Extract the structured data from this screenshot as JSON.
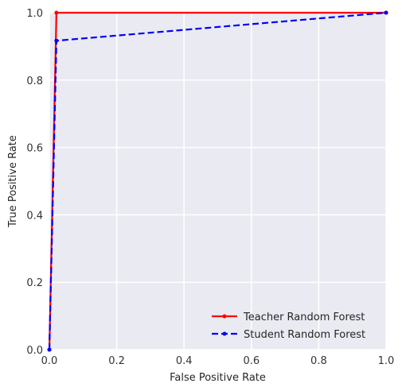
{
  "chart_data": {
    "type": "line",
    "title": "",
    "xlabel": "False Positive Rate",
    "ylabel": "True Positive Rate",
    "xlim": [
      0.0,
      1.0
    ],
    "ylim": [
      0.0,
      1.0
    ],
    "xticks": [
      "0.0",
      "0.2",
      "0.4",
      "0.6",
      "0.8",
      "1.0"
    ],
    "yticks": [
      "0.0",
      "0.2",
      "0.4",
      "0.6",
      "0.8",
      "1.0"
    ],
    "grid": true,
    "legend_position": "lower-right",
    "series": [
      {
        "name": "Teacher Random Forest",
        "color": "#ff0000",
        "line_style": "solid",
        "marker": "dot",
        "x": [
          0.0,
          0.021,
          1.0
        ],
        "y": [
          0.0,
          1.0,
          1.0
        ]
      },
      {
        "name": "Student Random Forest",
        "color": "#0000ff",
        "line_style": "dashed",
        "marker": "dot",
        "x": [
          0.0,
          0.021,
          1.0
        ],
        "y": [
          0.0,
          0.917,
          1.0
        ]
      }
    ]
  }
}
